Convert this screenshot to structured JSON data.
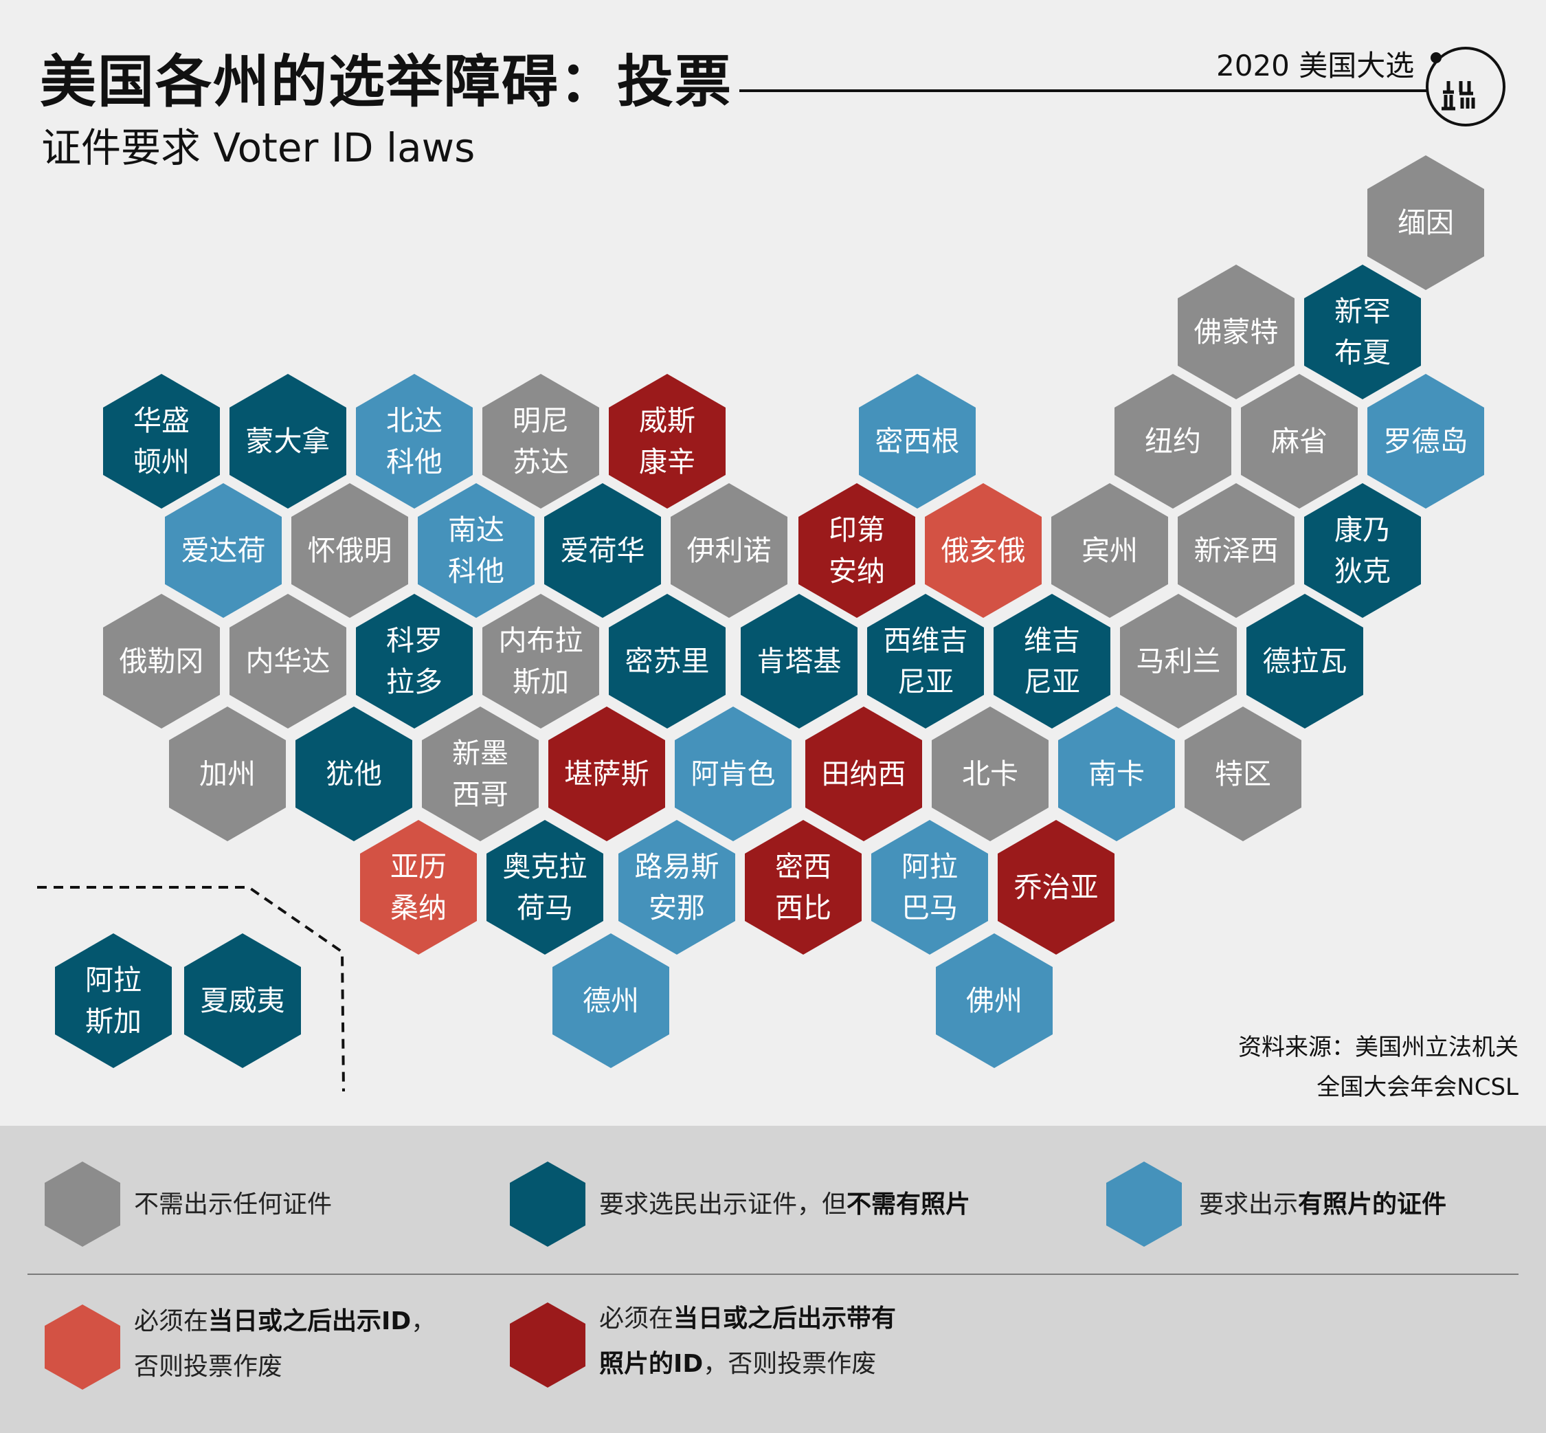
{
  "header": {
    "title": "美国各州的选举障碍：投票",
    "subtitle": "证件要求 Voter ID laws",
    "series_label": "2020 美国大选"
  },
  "colors": {
    "none": "#8c8c8c",
    "non_photo": "#04566e",
    "photo": "#4592bb",
    "strict_non_photo": "#d35244",
    "strict_photo": "#9b1a1b"
  },
  "states": [
    {
      "name": "缅因",
      "category": "none"
    },
    {
      "name": "佛蒙特",
      "category": "none"
    },
    {
      "name": "新罕\n布夏",
      "category": "non_photo"
    },
    {
      "name": "华盛\n顿州",
      "category": "non_photo"
    },
    {
      "name": "蒙大拿",
      "category": "non_photo"
    },
    {
      "name": "北达\n科他",
      "category": "photo"
    },
    {
      "name": "明尼\n苏达",
      "category": "none"
    },
    {
      "name": "威斯\n康辛",
      "category": "strict_photo"
    },
    {
      "name": "密西根",
      "category": "photo"
    },
    {
      "name": "纽约",
      "category": "none"
    },
    {
      "name": "麻省",
      "category": "none"
    },
    {
      "name": "罗德岛",
      "category": "photo"
    },
    {
      "name": "爱达荷",
      "category": "photo"
    },
    {
      "name": "怀俄明",
      "category": "none"
    },
    {
      "name": "南达\n科他",
      "category": "photo"
    },
    {
      "name": "爱荷华",
      "category": "non_photo"
    },
    {
      "name": "伊利诺",
      "category": "none"
    },
    {
      "name": "印第\n安纳",
      "category": "strict_photo"
    },
    {
      "name": "俄亥俄",
      "category": "strict_non_photo"
    },
    {
      "name": "宾州",
      "category": "none"
    },
    {
      "name": "新泽西",
      "category": "none"
    },
    {
      "name": "康乃\n狄克",
      "category": "non_photo"
    },
    {
      "name": "俄勒冈",
      "category": "none"
    },
    {
      "name": "内华达",
      "category": "none"
    },
    {
      "name": "科罗\n拉多",
      "category": "non_photo"
    },
    {
      "name": "内布拉\n斯加",
      "category": "none"
    },
    {
      "name": "密苏里",
      "category": "non_photo"
    },
    {
      "name": "肯塔基",
      "category": "non_photo"
    },
    {
      "name": "西维吉\n尼亚",
      "category": "non_photo"
    },
    {
      "name": "维吉\n尼亚",
      "category": "non_photo"
    },
    {
      "name": "马利兰",
      "category": "none"
    },
    {
      "name": "德拉瓦",
      "category": "non_photo"
    },
    {
      "name": "加州",
      "category": "none"
    },
    {
      "name": "犹他",
      "category": "non_photo"
    },
    {
      "name": "新墨\n西哥",
      "category": "none"
    },
    {
      "name": "堪萨斯",
      "category": "strict_photo"
    },
    {
      "name": "阿肯色",
      "category": "photo"
    },
    {
      "name": "田纳西",
      "category": "strict_photo"
    },
    {
      "name": "北卡",
      "category": "none"
    },
    {
      "name": "南卡",
      "category": "photo"
    },
    {
      "name": "特区",
      "category": "none"
    },
    {
      "name": "亚历\n桑纳",
      "category": "strict_non_photo"
    },
    {
      "name": "奥克拉\n荷马",
      "category": "non_photo"
    },
    {
      "name": "路易斯\n安那",
      "category": "photo"
    },
    {
      "name": "密西\n西比",
      "category": "strict_photo"
    },
    {
      "name": "阿拉\n巴马",
      "category": "photo"
    },
    {
      "name": "乔治亚",
      "category": "strict_photo"
    },
    {
      "name": "德州",
      "category": "photo"
    },
    {
      "name": "佛州",
      "category": "photo"
    },
    {
      "name": "阿拉\n斯加",
      "category": "non_photo"
    },
    {
      "name": "夏威夷",
      "category": "non_photo"
    }
  ],
  "source": {
    "line1": "资料来源：美国州立法机关",
    "line2": "全国大会年会NCSL"
  },
  "legend": [
    {
      "category": "none",
      "parts": [
        {
          "text": "不需出示任何证件",
          "bold": false
        }
      ]
    },
    {
      "category": "non_photo",
      "parts": [
        {
          "text": "要求选民出示证件，但",
          "bold": false
        },
        {
          "text": "不需有照片",
          "bold": true
        }
      ]
    },
    {
      "category": "photo",
      "parts": [
        {
          "text": "要求出示",
          "bold": false
        },
        {
          "text": "有照片的证件",
          "bold": true
        }
      ]
    },
    {
      "category": "strict_non_photo",
      "line1": [
        {
          "text": "必须在",
          "bold": false
        },
        {
          "text": "当日或之后出示ID",
          "bold": true
        },
        {
          "text": "，",
          "bold": false
        }
      ],
      "line2": [
        {
          "text": "否则投票作废",
          "bold": false
        }
      ]
    },
    {
      "category": "strict_photo",
      "line1": [
        {
          "text": "必须在",
          "bold": false
        },
        {
          "text": "当日或之后出示带有",
          "bold": true
        }
      ],
      "line2": [
        {
          "text": "照片的ID",
          "bold": true
        },
        {
          "text": "，否则投票作废",
          "bold": false
        }
      ]
    }
  ]
}
